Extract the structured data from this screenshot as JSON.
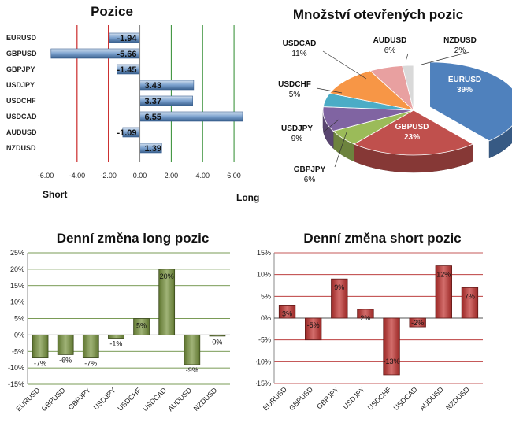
{
  "chart_data": [
    {
      "id": "pozice",
      "type": "bar",
      "orientation": "horizontal",
      "title": "Pozice",
      "categories": [
        "EURUSD",
        "GBPUSD",
        "GBPJPY",
        "USDJPY",
        "USDCHF",
        "USDCAD",
        "AUDUSD",
        "NZDUSD"
      ],
      "values": [
        -1.94,
        -5.66,
        -1.45,
        3.43,
        3.37,
        6.55,
        -1.09,
        1.39
      ],
      "value_labels": [
        "-1.94",
        "-5.66",
        "-1.45",
        "3.43",
        "3.37",
        "6.55",
        "-1.09",
        "1.39"
      ],
      "xlim": [
        -6,
        7
      ],
      "xticks": [
        -6,
        -4,
        -2,
        0,
        2,
        4,
        6
      ],
      "xtick_labels": [
        "-6.00",
        "-4.00",
        "-2.00",
        "0.00",
        "2.00",
        "4.00",
        "6.00"
      ],
      "left_label": "Short",
      "right_label": "Long",
      "bar_color": "#4f81bd",
      "red_lines": [
        -4,
        -2
      ],
      "green_lines": [
        2,
        4,
        6
      ]
    },
    {
      "id": "pie",
      "type": "pie",
      "title": "Množství otevřených pozic",
      "slices": [
        {
          "label": "EURUSD",
          "value": 39,
          "display": "39%",
          "color": "#4f81bd"
        },
        {
          "label": "GBPUSD",
          "value": 23,
          "display": "23%",
          "color": "#c0504d"
        },
        {
          "label": "GBPJPY",
          "value": 6,
          "display": "6%",
          "color": "#9bbb59"
        },
        {
          "label": "USDJPY",
          "value": 9,
          "display": "9%",
          "color": "#8064a2"
        },
        {
          "label": "USDCHF",
          "value": 5,
          "display": "5%",
          "color": "#4bacc6"
        },
        {
          "label": "USDCAD",
          "value": 11,
          "display": "11%",
          "color": "#f79646"
        },
        {
          "label": "AUDUSD",
          "value": 6,
          "display": "6%",
          "color": "#e8a0a0"
        },
        {
          "label": "NZDUSD",
          "value": 2,
          "display": "2%",
          "color": "#d9d9d9"
        }
      ]
    },
    {
      "id": "long",
      "type": "bar",
      "title": "Denní změna long pozic",
      "categories": [
        "EURUSD",
        "GBPUSD",
        "GBPJPY",
        "USDJPY",
        "USDCHF",
        "USDCAD",
        "AUDUSD",
        "NZDUSD"
      ],
      "values": [
        -7,
        -6,
        -7,
        -1,
        5,
        20,
        -9,
        0
      ],
      "value_labels": [
        "-7%",
        "-6%",
        "-7%",
        "-1%",
        "5%",
        "20%",
        "-9%",
        "0%"
      ],
      "ylim": [
        -15,
        25
      ],
      "yticks": [
        -15,
        -10,
        -5,
        0,
        5,
        10,
        15,
        20,
        25
      ],
      "ytick_labels": [
        "-15%",
        "-10%",
        "-5%",
        "0%",
        "5%",
        "10%",
        "15%",
        "20%",
        "25%"
      ],
      "bar_color": "#77933c",
      "grid_color": "#4e7a1e"
    },
    {
      "id": "short",
      "type": "bar",
      "title": "Denní změna short pozic",
      "categories": [
        "EURUSD",
        "GBPUSD",
        "GBPJPY",
        "USDJPY",
        "USDCHF",
        "USDCAD",
        "AUDUSD",
        "NZDUSD"
      ],
      "values": [
        3,
        -5,
        9,
        2,
        -13,
        -2,
        12,
        7
      ],
      "value_labels": [
        "3%",
        "-5%",
        "9%",
        "2%",
        "-13%",
        "-2%",
        "12%",
        "7%"
      ],
      "ylim": [
        -15,
        15
      ],
      "yticks": [
        -15,
        -10,
        -5,
        0,
        5,
        10,
        15
      ],
      "ytick_labels": [
        "-15%",
        "-10%",
        "-5%",
        "0%",
        "5%",
        "10%",
        "15%"
      ],
      "bar_color": "#c0302d",
      "grid_color": "#b22222"
    }
  ]
}
